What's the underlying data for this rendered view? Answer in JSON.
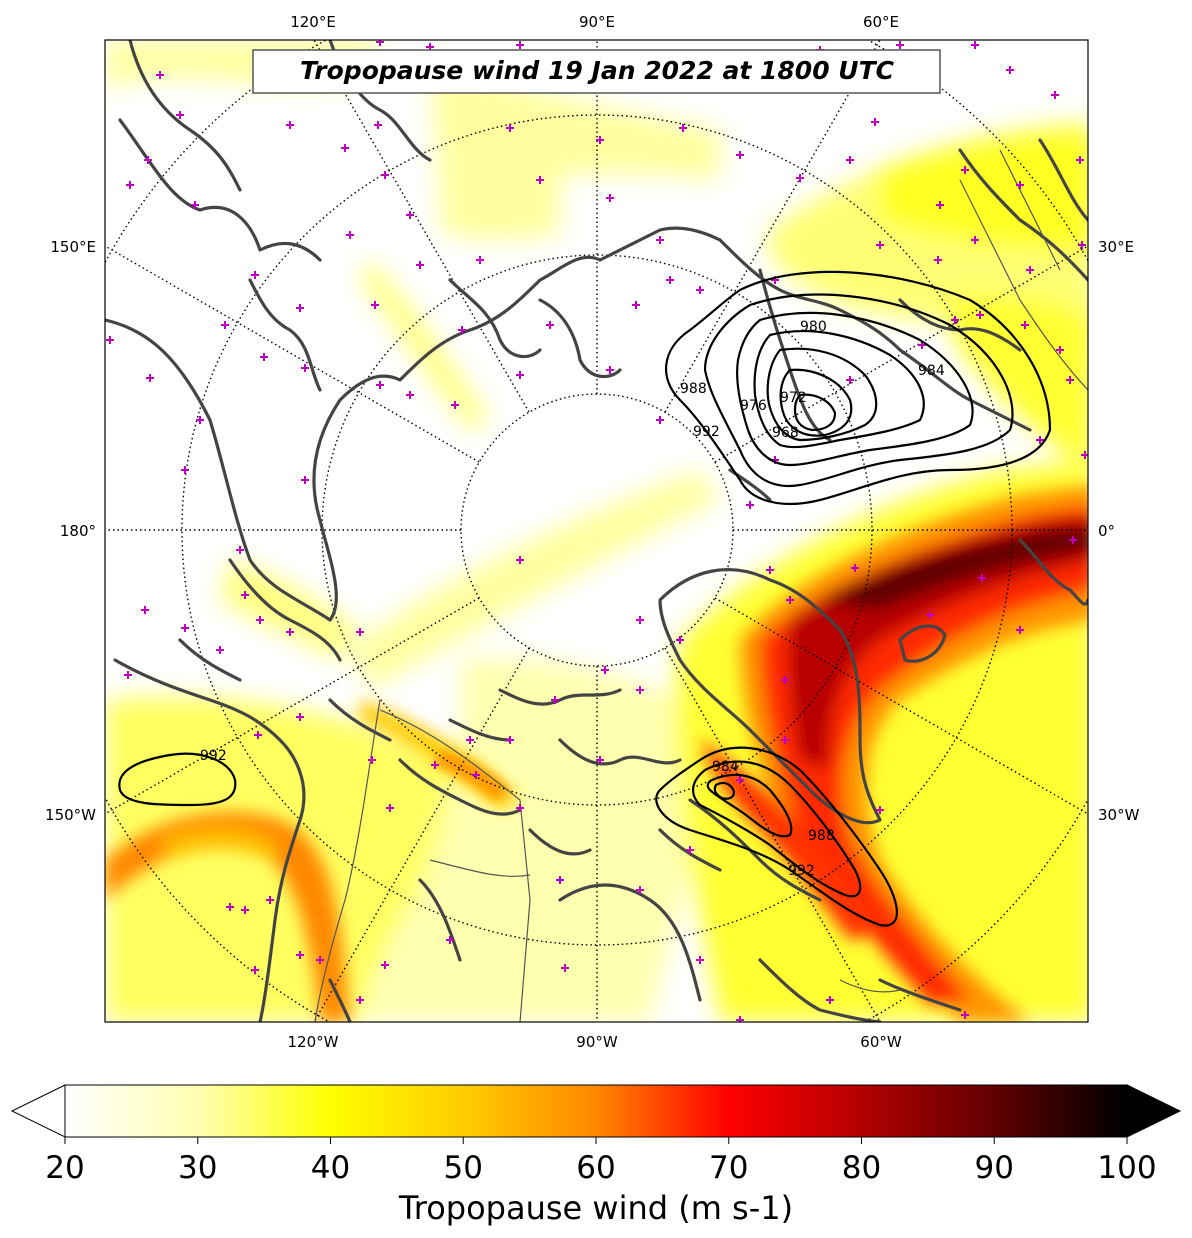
{
  "title": "Tropopause wind 19 Jan 2022 at 1800 UTC",
  "lon_labels_top": [
    "120°E",
    "90°E",
    "60°E"
  ],
  "lon_labels_bottom": [
    "120°W",
    "90°W",
    "60°W"
  ],
  "lon_labels_left": [
    "150°E",
    "180°",
    "150°W"
  ],
  "lon_labels_right": [
    "30°E",
    "0°",
    "30°W"
  ],
  "colorbar": {
    "label": "Tropopause wind (m s-1)",
    "ticks": [
      "20",
      "30",
      "40",
      "50",
      "60",
      "70",
      "80",
      "90",
      "100"
    ],
    "min": 20,
    "max": 100,
    "extend": "both",
    "colormap": [
      "#ffffff",
      "#ffffb3",
      "#ffff00",
      "#ffcc00",
      "#ff8800",
      "#ff0000",
      "#b30000",
      "#600000",
      "#000000"
    ]
  },
  "pressure_contours": {
    "low_north": [
      "960",
      "968",
      "972",
      "976",
      "980",
      "984",
      "988",
      "992"
    ],
    "low_labrador": [
      "984",
      "988",
      "992"
    ],
    "low_pacific": [
      "992"
    ]
  },
  "station_marker_color": "#c000c0"
}
